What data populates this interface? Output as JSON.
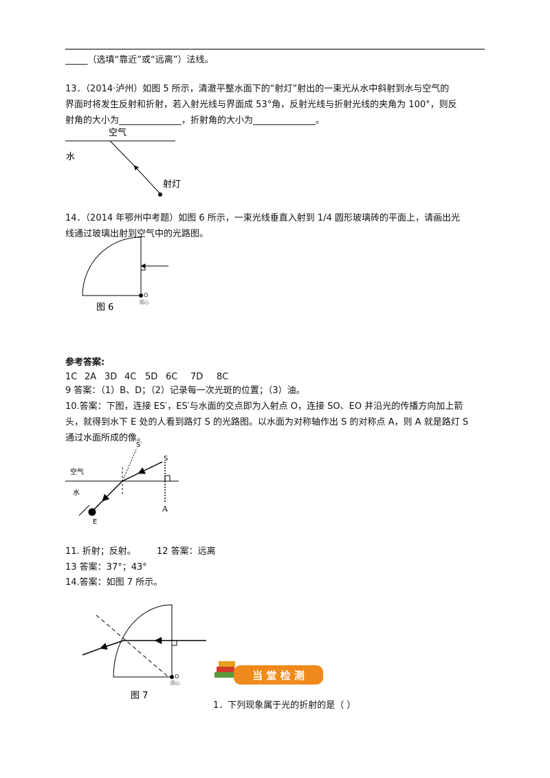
{
  "top_line": "_____（选填“靠近”或“远离”）法线。",
  "q13": {
    "lines": [
      "13．（2014·泸州）如图 5 所示，清澈平整水面下的“射灯”射出的一束光从水中斜射到水与空气的",
      "界面时将发生反射和折射，若入射光线与界面成 53°角，反射光线与折射光线的夹角为 100°，则反",
      "射角的大小为______________，折射角的大小为______________。"
    ],
    "figure": {
      "air": "空气",
      "water": "水",
      "lamp": "射灯"
    }
  },
  "q14": {
    "lines": [
      "14．（2014 年鄂州中考题）如图 6 所示，一束光线垂直入射到 1/4 圆形玻璃砖的平面上，请画出光",
      "线通过玻璃出射到空气中的光路图。"
    ],
    "figure": {
      "center": "O",
      "center_label": "圆心",
      "caption": "图 6"
    }
  },
  "answers": {
    "heading": "参考答案:",
    "choices": [
      "1C",
      "2A",
      "3D",
      "4C",
      "5D",
      "6C",
      "7D",
      "8C"
    ],
    "a9": "9 答案：（1）B、D；（2）记录每一次光斑的位置；（3）油。",
    "a10": [
      "10.答案：下图，连接 ES′，ES′与水面的交点即为入射点 O，连接 SO、EO 并沿光的传播方向加上箭",
      "头，就得到水下 E 处的人看到路灯 S 的光路图。以水面为对称轴作出 S 的对称点 A，则 A 就是路灯 S",
      "通过水面所成的像。"
    ],
    "figure10": {
      "s_prime": "S′",
      "s": "S",
      "air": "空气",
      "water": "水",
      "e": "E",
      "a": "A"
    },
    "a11": "11. 折射；反射。",
    "a12": "12 答案：远离",
    "a13": "13 答案：37°；43°",
    "a14": "14.答案：如图 7 所示。",
    "figure7": {
      "center": "O",
      "center_label": "圆心",
      "caption": "图 7"
    }
  },
  "banner": "当 堂 检 测",
  "q1": "1．下列现象属于光的折射的是（     ）"
}
